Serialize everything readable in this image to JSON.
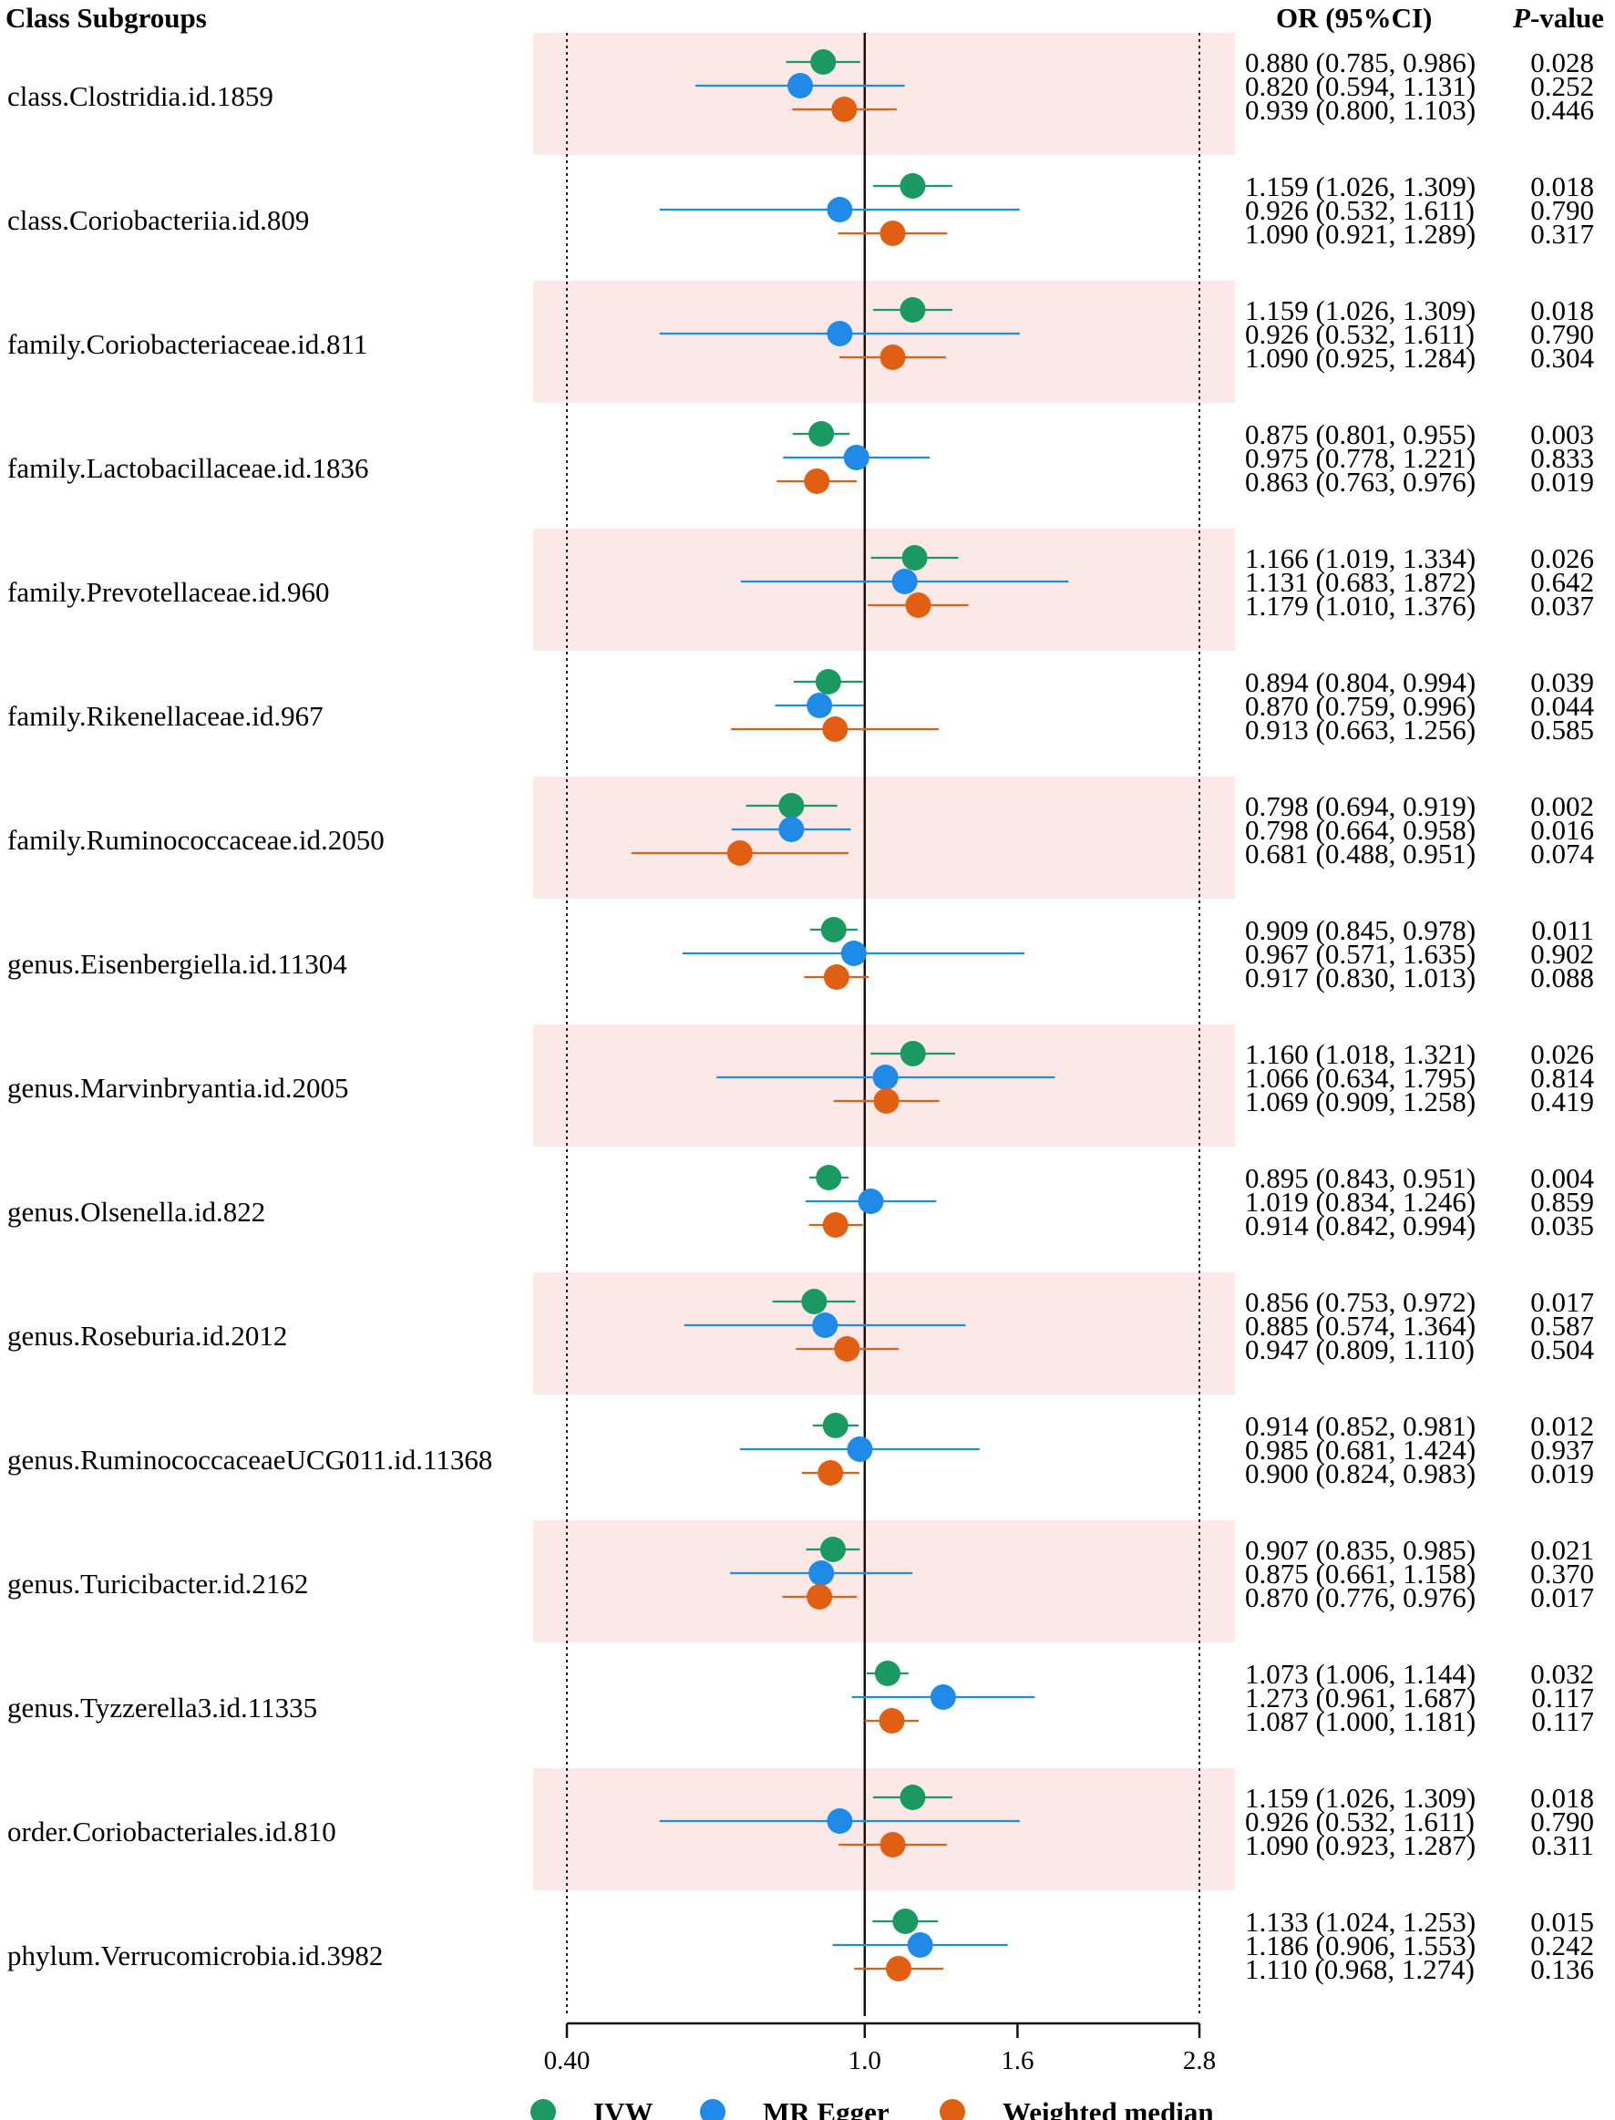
{
  "chart_data": {
    "type": "forest",
    "header": {
      "subgroup": "Class Subgroups",
      "or_ci": "OR (95%CI)",
      "p_italic": "P",
      "p_rest": "-value"
    },
    "x_scale": "log2",
    "xlim": [
      0.4,
      2.8
    ],
    "ticks": [
      {
        "value": 0.4,
        "label": "0.40"
      },
      {
        "value": 1.0,
        "label": "1.0"
      },
      {
        "value": 1.6,
        "label": "1.6"
      },
      {
        "value": 2.8,
        "label": "2.8"
      }
    ],
    "reference_line": 1.0,
    "dotted_lines": [
      0.4,
      2.8
    ],
    "methods": [
      {
        "key": "ivw",
        "name": "IVW",
        "color": "#1a9a62"
      },
      {
        "key": "egger",
        "name": "MR Egger",
        "color": "#1f8ae8"
      },
      {
        "key": "wm",
        "name": "Weighted median",
        "color": "#e05f12"
      }
    ],
    "band_color": "#fde8e8",
    "groups": [
      {
        "label": "class.Clostridia.id.1859",
        "rows": [
          {
            "or": 0.88,
            "lo": 0.785,
            "hi": 0.986,
            "text": "0.880 (0.785, 0.986)",
            "p": "0.028"
          },
          {
            "or": 0.82,
            "lo": 0.594,
            "hi": 1.131,
            "text": "0.820 (0.594, 1.131)",
            "p": "0.252"
          },
          {
            "or": 0.939,
            "lo": 0.8,
            "hi": 1.103,
            "text": "0.939 (0.800, 1.103)",
            "p": "0.446"
          }
        ]
      },
      {
        "label": "class.Coriobacteriia.id.809",
        "rows": [
          {
            "or": 1.159,
            "lo": 1.026,
            "hi": 1.309,
            "text": "1.159 (1.026, 1.309)",
            "p": "0.018"
          },
          {
            "or": 0.926,
            "lo": 0.532,
            "hi": 1.611,
            "text": "0.926 (0.532, 1.611)",
            "p": "0.790"
          },
          {
            "or": 1.09,
            "lo": 0.921,
            "hi": 1.289,
            "text": "1.090 (0.921, 1.289)",
            "p": "0.317"
          }
        ]
      },
      {
        "label": "family.Coriobacteriaceae.id.811",
        "rows": [
          {
            "or": 1.159,
            "lo": 1.026,
            "hi": 1.309,
            "text": "1.159 (1.026, 1.309)",
            "p": "0.018"
          },
          {
            "or": 0.926,
            "lo": 0.532,
            "hi": 1.611,
            "text": "0.926 (0.532, 1.611)",
            "p": "0.790"
          },
          {
            "or": 1.09,
            "lo": 0.925,
            "hi": 1.284,
            "text": "1.090 (0.925, 1.284)",
            "p": "0.304"
          }
        ]
      },
      {
        "label": "family.Lactobacillaceae.id.1836",
        "rows": [
          {
            "or": 0.875,
            "lo": 0.801,
            "hi": 0.955,
            "text": "0.875 (0.801, 0.955)",
            "p": "0.003"
          },
          {
            "or": 0.975,
            "lo": 0.778,
            "hi": 1.221,
            "text": "0.975 (0.778, 1.221)",
            "p": "0.833"
          },
          {
            "or": 0.863,
            "lo": 0.763,
            "hi": 0.976,
            "text": "0.863 (0.763, 0.976)",
            "p": "0.019"
          }
        ]
      },
      {
        "label": "family.Prevotellaceae.id.960",
        "rows": [
          {
            "or": 1.166,
            "lo": 1.019,
            "hi": 1.334,
            "text": "1.166 (1.019, 1.334)",
            "p": "0.026"
          },
          {
            "or": 1.131,
            "lo": 0.683,
            "hi": 1.872,
            "text": "1.131 (0.683, 1.872)",
            "p": "0.642"
          },
          {
            "or": 1.179,
            "lo": 1.01,
            "hi": 1.376,
            "text": "1.179 (1.010, 1.376)",
            "p": "0.037"
          }
        ]
      },
      {
        "label": "family.Rikenellaceae.id.967",
        "rows": [
          {
            "or": 0.894,
            "lo": 0.804,
            "hi": 0.994,
            "text": "0.894 (0.804, 0.994)",
            "p": "0.039"
          },
          {
            "or": 0.87,
            "lo": 0.759,
            "hi": 0.996,
            "text": "0.870 (0.759, 0.996)",
            "p": "0.044"
          },
          {
            "or": 0.913,
            "lo": 0.663,
            "hi": 1.256,
            "text": "0.913 (0.663, 1.256)",
            "p": "0.585"
          }
        ]
      },
      {
        "label": "family.Ruminococcaceae.id.2050",
        "rows": [
          {
            "or": 0.798,
            "lo": 0.694,
            "hi": 0.919,
            "text": "0.798 (0.694, 0.919)",
            "p": "0.002"
          },
          {
            "or": 0.798,
            "lo": 0.664,
            "hi": 0.958,
            "text": "0.798 (0.664, 0.958)",
            "p": "0.016"
          },
          {
            "or": 0.681,
            "lo": 0.488,
            "hi": 0.951,
            "text": "0.681 (0.488, 0.951)",
            "p": "0.074"
          }
        ]
      },
      {
        "label": "genus.Eisenbergiella.id.11304",
        "rows": [
          {
            "or": 0.909,
            "lo": 0.845,
            "hi": 0.978,
            "text": "0.909 (0.845, 0.978)",
            "p": "0.011"
          },
          {
            "or": 0.967,
            "lo": 0.571,
            "hi": 1.635,
            "text": "0.967 (0.571, 1.635)",
            "p": "0.902"
          },
          {
            "or": 0.917,
            "lo": 0.83,
            "hi": 1.013,
            "text": "0.917 (0.830, 1.013)",
            "p": "0.088"
          }
        ]
      },
      {
        "label": "genus.Marvinbryantia.id.2005",
        "rows": [
          {
            "or": 1.16,
            "lo": 1.018,
            "hi": 1.321,
            "text": "1.160 (1.018, 1.321)",
            "p": "0.026"
          },
          {
            "or": 1.066,
            "lo": 0.634,
            "hi": 1.795,
            "text": "1.066 (0.634, 1.795)",
            "p": "0.814"
          },
          {
            "or": 1.069,
            "lo": 0.909,
            "hi": 1.258,
            "text": "1.069 (0.909, 1.258)",
            "p": "0.419"
          }
        ]
      },
      {
        "label": "genus.Olsenella.id.822",
        "rows": [
          {
            "or": 0.895,
            "lo": 0.843,
            "hi": 0.951,
            "text": "0.895 (0.843, 0.951)",
            "p": "0.004"
          },
          {
            "or": 1.019,
            "lo": 0.834,
            "hi": 1.246,
            "text": "1.019 (0.834, 1.246)",
            "p": "0.859"
          },
          {
            "or": 0.914,
            "lo": 0.842,
            "hi": 0.994,
            "text": "0.914 (0.842, 0.994)",
            "p": "0.035"
          }
        ]
      },
      {
        "label": "genus.Roseburia.id.2012",
        "rows": [
          {
            "or": 0.856,
            "lo": 0.753,
            "hi": 0.972,
            "text": "0.856 (0.753, 0.972)",
            "p": "0.017"
          },
          {
            "or": 0.885,
            "lo": 0.574,
            "hi": 1.364,
            "text": "0.885 (0.574, 1.364)",
            "p": "0.587"
          },
          {
            "or": 0.947,
            "lo": 0.809,
            "hi": 1.11,
            "text": "0.947 (0.809, 1.110)",
            "p": "0.504"
          }
        ]
      },
      {
        "label": "genus.RuminococcaceaeUCG011.id.11368",
        "rows": [
          {
            "or": 0.914,
            "lo": 0.852,
            "hi": 0.981,
            "text": "0.914 (0.852, 0.981)",
            "p": "0.012"
          },
          {
            "or": 0.985,
            "lo": 0.681,
            "hi": 1.424,
            "text": "0.985 (0.681, 1.424)",
            "p": "0.937"
          },
          {
            "or": 0.9,
            "lo": 0.824,
            "hi": 0.983,
            "text": "0.900 (0.824, 0.983)",
            "p": "0.019"
          }
        ]
      },
      {
        "label": "genus.Turicibacter.id.2162",
        "rows": [
          {
            "or": 0.907,
            "lo": 0.835,
            "hi": 0.985,
            "text": "0.907 (0.835, 0.985)",
            "p": "0.021"
          },
          {
            "or": 0.875,
            "lo": 0.661,
            "hi": 1.158,
            "text": "0.875 (0.661, 1.158)",
            "p": "0.370"
          },
          {
            "or": 0.87,
            "lo": 0.776,
            "hi": 0.976,
            "text": "0.870 (0.776, 0.976)",
            "p": "0.017"
          }
        ]
      },
      {
        "label": "genus.Tyzzerella3.id.11335",
        "rows": [
          {
            "or": 1.073,
            "lo": 1.006,
            "hi": 1.144,
            "text": "1.073 (1.006, 1.144)",
            "p": "0.032"
          },
          {
            "or": 1.273,
            "lo": 0.961,
            "hi": 1.687,
            "text": "1.273 (0.961, 1.687)",
            "p": "0.117"
          },
          {
            "or": 1.087,
            "lo": 1.0,
            "hi": 1.181,
            "text": "1.087 (1.000, 1.181)",
            "p": "0.117"
          }
        ]
      },
      {
        "label": "order.Coriobacteriales.id.810",
        "rows": [
          {
            "or": 1.159,
            "lo": 1.026,
            "hi": 1.309,
            "text": "1.159 (1.026, 1.309)",
            "p": "0.018"
          },
          {
            "or": 0.926,
            "lo": 0.532,
            "hi": 1.611,
            "text": "0.926 (0.532, 1.611)",
            "p": "0.790"
          },
          {
            "or": 1.09,
            "lo": 0.923,
            "hi": 1.287,
            "text": "1.090 (0.923, 1.287)",
            "p": "0.311"
          }
        ]
      },
      {
        "label": "phylum.Verrucomicrobia.id.3982",
        "rows": [
          {
            "or": 1.133,
            "lo": 1.024,
            "hi": 1.253,
            "text": "1.133 (1.024, 1.253)",
            "p": "0.015"
          },
          {
            "or": 1.186,
            "lo": 0.906,
            "hi": 1.553,
            "text": "1.186 (0.906, 1.553)",
            "p": "0.242"
          },
          {
            "or": 1.11,
            "lo": 0.968,
            "hi": 1.274,
            "text": "1.110 (0.968, 1.274)",
            "p": "0.136"
          }
        ]
      }
    ]
  }
}
